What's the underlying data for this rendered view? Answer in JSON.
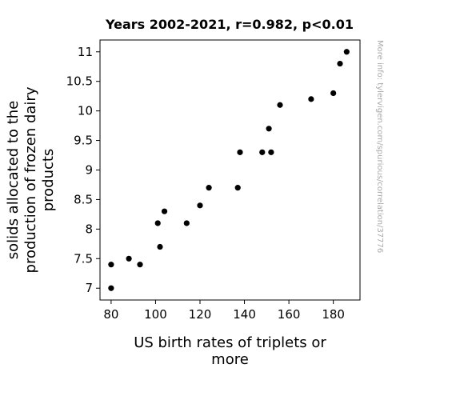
{
  "chart_data": {
    "type": "scatter",
    "title": "Years 2002-2021, r=0.982, p<0.01",
    "xlabel_lines": [
      "US birth rates of triplets or",
      "more"
    ],
    "ylabel_lines": [
      "solids allocated to the",
      "production of frozen dairy",
      "products"
    ],
    "xlim": [
      75,
      192
    ],
    "ylim": [
      6.8,
      11.2
    ],
    "xticks": [
      80,
      100,
      120,
      140,
      160,
      180
    ],
    "yticks": [
      7,
      7.5,
      8,
      8.5,
      9,
      9.5,
      10,
      10.5,
      11
    ],
    "grid": false,
    "marker_color": "#000000",
    "points": [
      {
        "x": 80,
        "y": 7.0
      },
      {
        "x": 80,
        "y": 7.4
      },
      {
        "x": 88,
        "y": 7.5
      },
      {
        "x": 93,
        "y": 7.4
      },
      {
        "x": 101,
        "y": 8.1
      },
      {
        "x": 102,
        "y": 7.7
      },
      {
        "x": 104,
        "y": 8.3
      },
      {
        "x": 114,
        "y": 8.1
      },
      {
        "x": 120,
        "y": 8.4
      },
      {
        "x": 124,
        "y": 8.7
      },
      {
        "x": 137,
        "y": 8.7
      },
      {
        "x": 138,
        "y": 9.3
      },
      {
        "x": 148,
        "y": 9.3
      },
      {
        "x": 151,
        "y": 9.7
      },
      {
        "x": 152,
        "y": 9.3
      },
      {
        "x": 156,
        "y": 10.1
      },
      {
        "x": 170,
        "y": 10.2
      },
      {
        "x": 180,
        "y": 10.3
      },
      {
        "x": 183,
        "y": 10.8
      },
      {
        "x": 186,
        "y": 11.0
      }
    ]
  },
  "side_note": "More info: tylervigen.com/spurious/correlation/37776"
}
